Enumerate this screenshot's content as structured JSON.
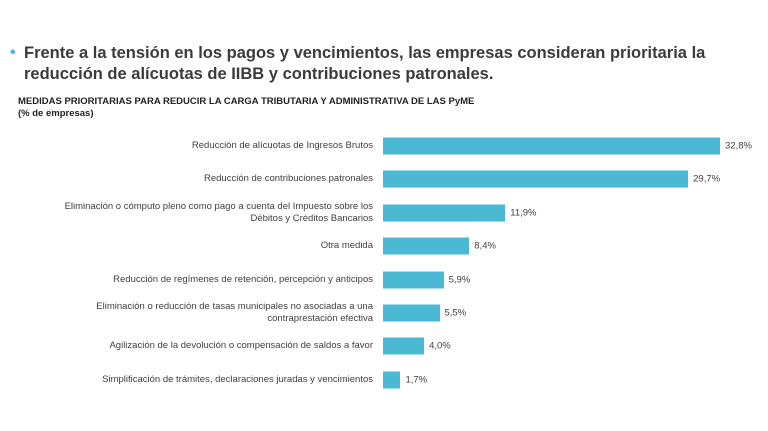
{
  "header": {
    "bullet": "•",
    "title": "Frente a la tensión en los pagos y vencimientos, las empresas consideran prioritaria la\nreducción de alícuotas de IIBB y contribuciones patronales."
  },
  "chart_data": {
    "type": "hbar",
    "title": "MEDIDAS PRIORITARIAS PARA REDUCIR LA CARGA TRIBUTARIA Y ADMINISTRATIVA DE LAS PyME",
    "subtitle": "(% de empresas)",
    "categories": [
      "Reducción de alícuotas de Ingresos Brutos",
      "Reducción de contribuciones patronales",
      "Eliminación o cómputo pleno como pago a cuenta del Impuesto sobre los\nDébitos y Créditos Bancarios",
      "Otra medida",
      "Reducción de regímenes de retención, percepción y anticipos",
      "Eliminación o reducción de tasas municipales no asociadas a una\ncontraprestación efectiva",
      "Agilización de la devolución o compensación de saldos a favor",
      "Simplificación de trámites, declaraciones juradas y vencimientos"
    ],
    "values": [
      32.8,
      29.7,
      11.9,
      8.4,
      5.9,
      5.5,
      4.0,
      1.7
    ],
    "value_labels": [
      "32,8%",
      "29,7%",
      "11,9%",
      "8,4%",
      "5,9%",
      "5,5%",
      "4,0%",
      "1,7%"
    ],
    "color": "#4bb8d4"
  }
}
